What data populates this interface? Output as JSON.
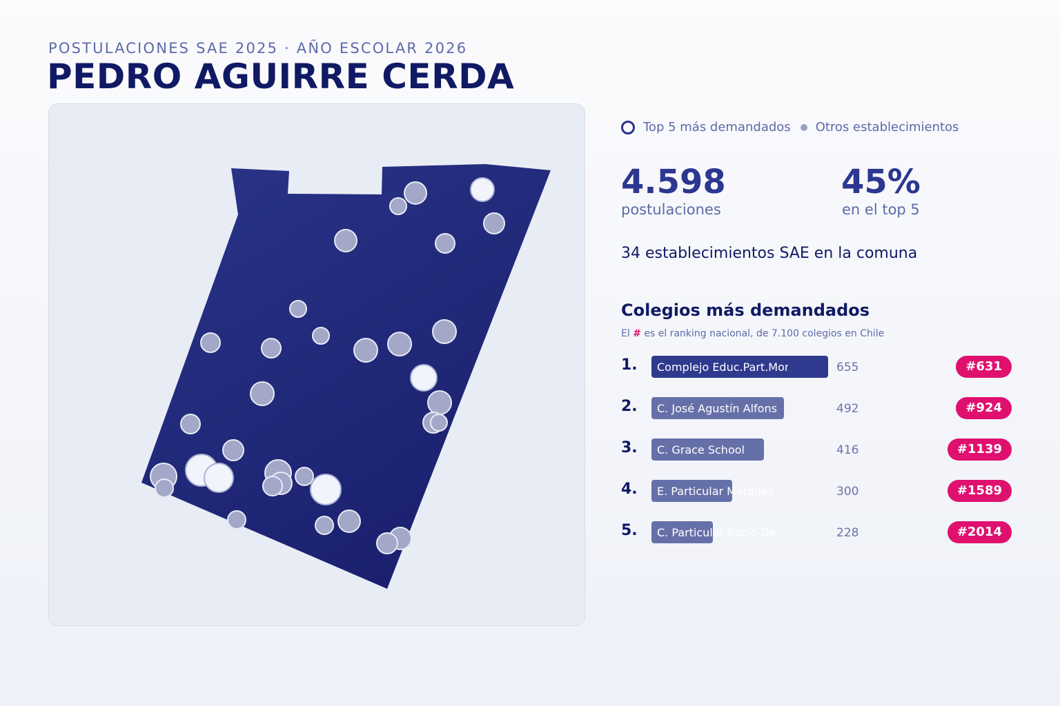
{
  "header": {
    "subtitle": "POSTULACIONES SAE 2025 · AÑO ESCOLAR 2026",
    "title": "PEDRO AGUIRRE CERDA"
  },
  "legend": {
    "top_label": "Top 5 más demandados",
    "other_label": "Otros establecimientos"
  },
  "stats": {
    "applications_value": "4.598",
    "applications_label": "postulaciones",
    "top5_value": "45%",
    "top5_label": "en el top 5",
    "schools_line": "34 establecimientos SAE en la comuna"
  },
  "ranking": {
    "title": "Colegios más demandados",
    "note_prefix": "El ",
    "note_hash": "#",
    "note_suffix": " es el ranking nacional, de 7.100 colegios en Chile",
    "items": [
      {
        "rank": "1.",
        "name": "Complejo Educ.Part.Mon",
        "count": "655",
        "value": 655,
        "national": "#631"
      },
      {
        "rank": "2.",
        "name": "C. José Agustín Alfons",
        "count": "492",
        "value": 492,
        "national": "#924"
      },
      {
        "rank": "3.",
        "name": "C. Grace School",
        "count": "416",
        "value": 416,
        "national": "#1139"
      },
      {
        "rank": "4.",
        "name": "E. Particular Marqués",
        "count": "300",
        "value": 300,
        "national": "#1589"
      },
      {
        "rank": "5.",
        "name": "C. Particular Rocío De",
        "count": "228",
        "value": 228,
        "national": "#2014"
      }
    ]
  },
  "map": {
    "region_color": "#1f2778",
    "top_marker_color": "#f2f4fb",
    "other_marker_color": "#a3a8c9",
    "badge_color": "#e0106e"
  }
}
